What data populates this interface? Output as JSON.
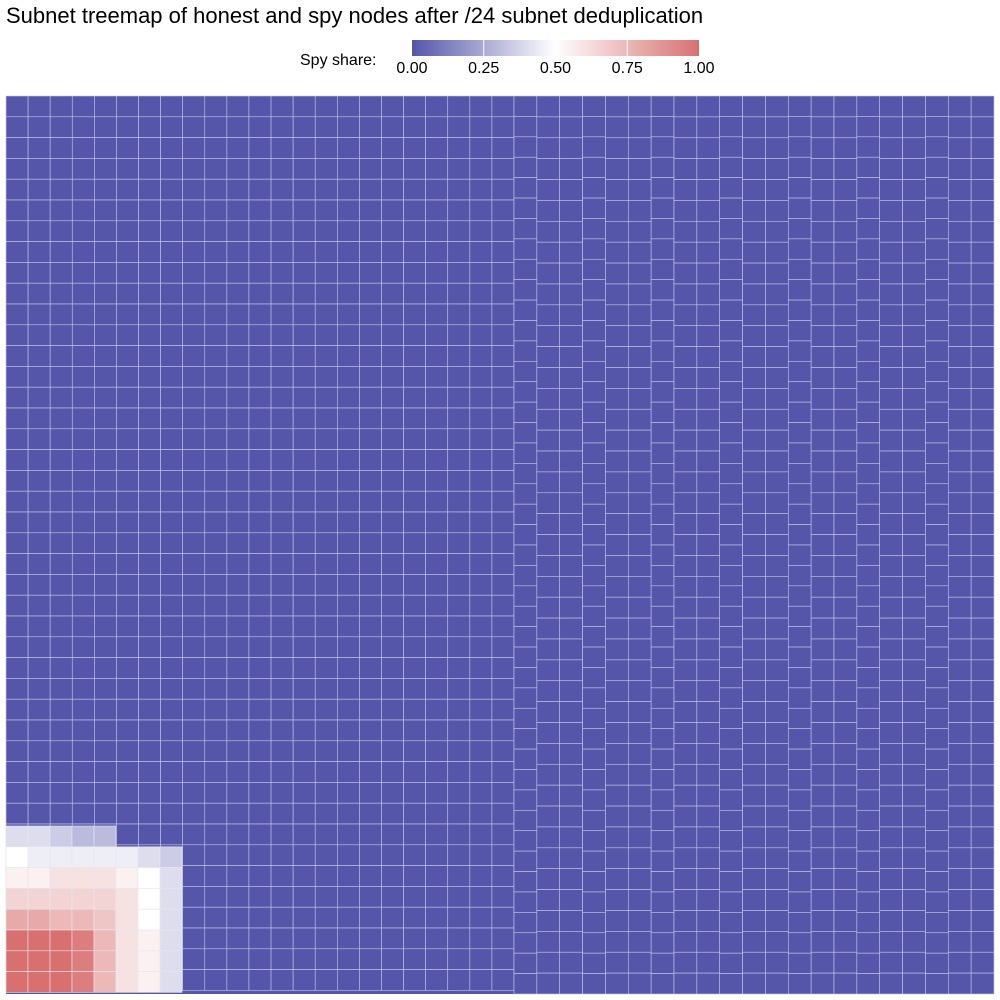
{
  "chart_data": {
    "type": "treemap",
    "title": "Subnet treemap of honest and spy nodes after /24 subnet deduplication",
    "legend": {
      "label": "Spy share:",
      "ticks": [
        "0.00",
        "0.25",
        "0.50",
        "0.75",
        "1.00"
      ],
      "tick_values": [
        0,
        0.25,
        0.5,
        0.75,
        1
      ],
      "colors": {
        "low": "#5555aa",
        "mid": "#ffffff",
        "high": "#d87070"
      },
      "range": [
        0,
        1
      ]
    },
    "groups": [
      {
        "spy_share": 0.0,
        "tile_count": 1240
      },
      {
        "spy_share": 0.2,
        "tile_count": 2
      },
      {
        "spy_share": 0.3,
        "tile_count": 3
      },
      {
        "spy_share": 0.35,
        "tile_count": 2
      },
      {
        "spy_share": 0.4,
        "tile_count": 1
      },
      {
        "spy_share": 0.45,
        "tile_count": 3
      },
      {
        "spy_share": 0.5,
        "tile_count": 8
      },
      {
        "spy_share": 0.55,
        "tile_count": 3
      },
      {
        "spy_share": 0.6,
        "tile_count": 4
      },
      {
        "spy_share": 0.65,
        "tile_count": 3
      },
      {
        "spy_share": 0.7,
        "tile_count": 7
      },
      {
        "spy_share": 0.75,
        "tile_count": 6
      },
      {
        "spy_share": 0.9,
        "tile_count": 4
      },
      {
        "spy_share": 0.95,
        "tile_count": 3
      },
      {
        "spy_share": 1.0,
        "tile_count": 12
      }
    ]
  }
}
